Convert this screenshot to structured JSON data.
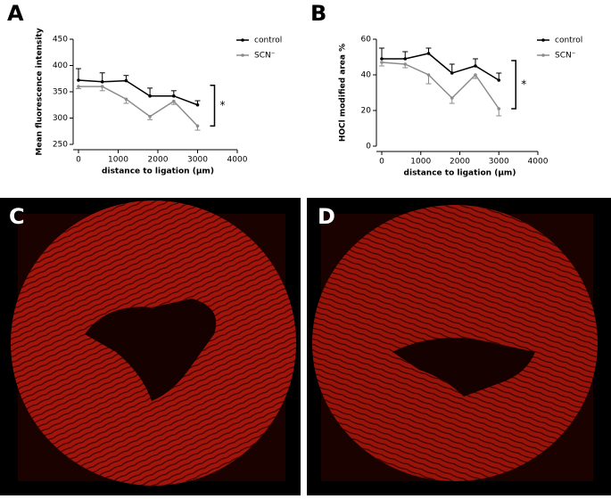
{
  "chart_data": [
    {
      "type": "line",
      "label": "A",
      "ylabel": "Mean fluorescence intensity",
      "xlabel": "distance to ligation (μm)",
      "x": [
        0,
        600,
        1200,
        1800,
        2400,
        3000
      ],
      "series": [
        {
          "name": "control",
          "color": "#000000",
          "values": [
            372,
            369,
            371,
            342,
            342,
            325
          ],
          "errors": [
            22,
            17,
            10,
            15,
            10,
            8
          ]
        },
        {
          "name": "SCN⁻",
          "color": "#8c8c8c",
          "values": [
            360,
            360,
            336,
            303,
            332,
            285
          ],
          "errors": [
            4,
            8,
            8,
            6,
            6,
            8
          ]
        }
      ],
      "xlim": [
        0,
        4000
      ],
      "xticks": [
        0,
        1000,
        2000,
        3000,
        4000
      ],
      "ylim": [
        250,
        450
      ],
      "yticks": [
        250,
        300,
        350,
        400,
        450
      ],
      "annotation": "*"
    },
    {
      "type": "line",
      "label": "B",
      "ylabel": "HOCl modified area %",
      "xlabel": "distance to ligation (μm)",
      "x": [
        0,
        600,
        1200,
        1800,
        2400,
        3000
      ],
      "series": [
        {
          "name": "control",
          "color": "#000000",
          "values": [
            49,
            49,
            52,
            41,
            45,
            37
          ],
          "errors": [
            6,
            4,
            3,
            5,
            4,
            4
          ]
        },
        {
          "name": "SCN⁻",
          "color": "#8c8c8c",
          "values": [
            47,
            46,
            40,
            27,
            40,
            21
          ],
          "errors": [
            2,
            2,
            5,
            3,
            2,
            4
          ]
        }
      ],
      "xlim": [
        0,
        4000
      ],
      "xticks": [
        0,
        1000,
        2000,
        3000,
        4000
      ],
      "ylim": [
        0,
        60
      ],
      "yticks": [
        0,
        20,
        40,
        60
      ],
      "annotation": "*"
    }
  ],
  "images": [
    {
      "label": "C"
    },
    {
      "label": "D"
    }
  ]
}
